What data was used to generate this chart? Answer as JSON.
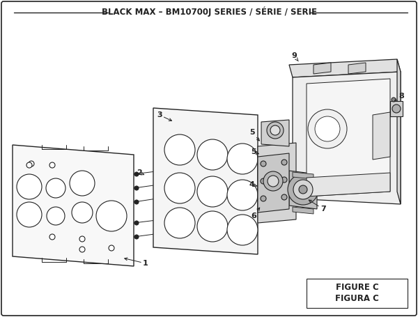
{
  "title": "BLACK MAX – BM10700J SERIES / SÉRIE / SERIE",
  "figure_label": "FIGURE C",
  "figura_label": "FIGURA C",
  "bg_color": "#ffffff",
  "lc": "#222222",
  "tc": "#222222",
  "title_fontsize": 8.5,
  "label_fontsize": 8,
  "fig_label_fontsize": 8.5
}
